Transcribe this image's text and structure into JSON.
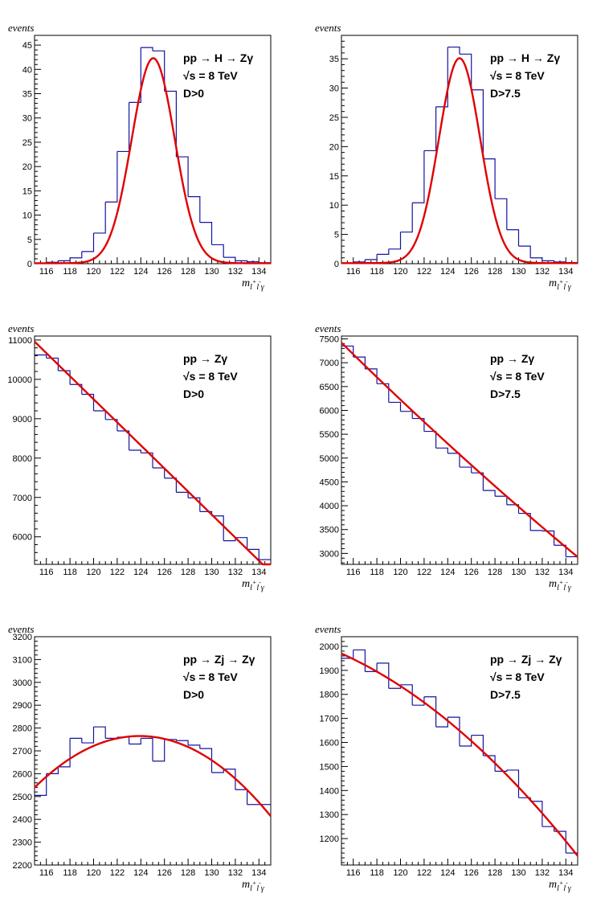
{
  "chart_data": [
    {
      "type": "histogram+fit",
      "ylabel": "events",
      "xlabel": {
        "base": "m",
        "sub": "l",
        "sup1": "+",
        "mid": "l",
        "sup2": "-",
        "end": "γ"
      },
      "annotations": [
        "pp → H → Zγ",
        "√s = 8 TeV",
        "D>0"
      ],
      "xlim": [
        115,
        135
      ],
      "ylim": [
        0,
        47
      ],
      "xticks": [
        116,
        118,
        120,
        122,
        124,
        126,
        128,
        130,
        132,
        134
      ],
      "yticks": [
        0,
        5,
        10,
        15,
        20,
        25,
        30,
        35,
        40,
        45
      ],
      "bin_edges": [
        115,
        116,
        117,
        118,
        119,
        120,
        121,
        122,
        123,
        124,
        125,
        126,
        127,
        128,
        129,
        130,
        131,
        132,
        133,
        134,
        135
      ],
      "histogram": [
        0.1,
        0.3,
        0.6,
        1.2,
        2.5,
        6.3,
        12.7,
        23.1,
        33.2,
        44.5,
        43.8,
        35.5,
        22.0,
        13.8,
        8.5,
        3.9,
        1.3,
        0.6,
        0.4,
        0.2
      ],
      "fit": {
        "kind": "gaussian",
        "amplitude": 42.2,
        "mean": 125.05,
        "sigma": 1.82,
        "baseline": 0.1
      },
      "hist_color": "#1414a0",
      "fit_color": "#e00000"
    },
    {
      "type": "histogram+fit",
      "ylabel": "events",
      "xlabel": {
        "base": "m",
        "sub": "l",
        "sup1": "+",
        "mid": "l",
        "sup2": "-",
        "end": "γ"
      },
      "annotations": [
        "pp → H → Zγ",
        "√s = 8 TeV",
        "D>7.5"
      ],
      "xlim": [
        115,
        135
      ],
      "ylim": [
        0,
        39
      ],
      "xticks": [
        116,
        118,
        120,
        122,
        124,
        126,
        128,
        130,
        132,
        134
      ],
      "yticks": [
        0,
        5,
        10,
        15,
        20,
        25,
        30,
        35
      ],
      "bin_edges": [
        115,
        116,
        117,
        118,
        119,
        120,
        121,
        122,
        123,
        124,
        125,
        126,
        127,
        128,
        129,
        130,
        131,
        132,
        133,
        134,
        135
      ],
      "histogram": [
        0.1,
        0.3,
        0.7,
        1.6,
        2.5,
        5.4,
        10.4,
        19.3,
        26.8,
        37.0,
        35.8,
        29.7,
        17.9,
        11.1,
        5.8,
        3.0,
        1.0,
        0.5,
        0.3,
        0.2
      ],
      "fit": {
        "kind": "gaussian",
        "amplitude": 35.0,
        "mean": 125.0,
        "sigma": 1.75,
        "baseline": 0.1
      },
      "hist_color": "#1414a0",
      "fit_color": "#e00000"
    },
    {
      "type": "histogram+fit",
      "ylabel": "events",
      "xlabel": {
        "base": "m",
        "sub": "l",
        "sup1": "+",
        "mid": "l",
        "sup2": "-",
        "end": "γ"
      },
      "annotations": [
        "pp → Zγ",
        "√s = 8 TeV",
        "D>0"
      ],
      "xlim": [
        115,
        135
      ],
      "ylim": [
        5300,
        11100
      ],
      "xticks": [
        116,
        118,
        120,
        122,
        124,
        126,
        128,
        130,
        132,
        134
      ],
      "yticks": [
        6000,
        7000,
        8000,
        9000,
        10000,
        11000
      ],
      "bin_edges": [
        115,
        116,
        117,
        118,
        119,
        120,
        121,
        122,
        123,
        124,
        125,
        126,
        127,
        128,
        129,
        130,
        131,
        132,
        133,
        134,
        135
      ],
      "histogram": [
        10620,
        10540,
        10220,
        9870,
        9620,
        9200,
        8980,
        8690,
        8200,
        8130,
        7750,
        7490,
        7130,
        6990,
        6640,
        6530,
        5900,
        5980,
        5680,
        5420
      ],
      "fit": {
        "kind": "polynomial",
        "coefficients": [
          10960,
          -293,
          0
        ]
      },
      "hist_color": "#1414a0",
      "fit_color": "#e00000"
    },
    {
      "type": "histogram+fit",
      "ylabel": "events",
      "xlabel": {
        "base": "m",
        "sub": "l",
        "sup1": "+",
        "mid": "l",
        "sup2": "-",
        "end": "γ"
      },
      "annotations": [
        "pp → Zγ",
        "√s = 8 TeV",
        "D>7.5"
      ],
      "xlim": [
        115,
        135
      ],
      "ylim": [
        2770,
        7560
      ],
      "xticks": [
        116,
        118,
        120,
        122,
        124,
        126,
        128,
        130,
        132,
        134
      ],
      "yticks": [
        3000,
        3500,
        4000,
        4500,
        5000,
        5500,
        6000,
        6500,
        7000,
        7500
      ],
      "bin_edges": [
        115,
        116,
        117,
        118,
        119,
        120,
        121,
        122,
        123,
        124,
        125,
        126,
        127,
        128,
        129,
        130,
        131,
        132,
        133,
        134,
        135
      ],
      "histogram": [
        7350,
        7120,
        6870,
        6560,
        6170,
        5980,
        5830,
        5560,
        5210,
        5100,
        4810,
        4690,
        4320,
        4200,
        4020,
        3840,
        3480,
        3470,
        3170,
        2930
      ],
      "fit": {
        "kind": "polynomial",
        "coefficients": [
          7420,
          -243.8,
          0.95
        ]
      },
      "hist_color": "#1414a0",
      "fit_color": "#e00000"
    },
    {
      "type": "histogram+fit",
      "ylabel": "events",
      "xlabel": {
        "base": "m",
        "sub": "l",
        "sup1": "+",
        "mid": "l",
        "sup2": "-",
        "end": "γ"
      },
      "annotations": [
        "pp → Zj → Zγ",
        "√s = 8 TeV",
        "D>0"
      ],
      "xlim": [
        115,
        135
      ],
      "ylim": [
        2200,
        3200
      ],
      "xticks": [
        116,
        118,
        120,
        122,
        124,
        126,
        128,
        130,
        132,
        134
      ],
      "yticks": [
        2200,
        2300,
        2400,
        2500,
        2600,
        2700,
        2800,
        2900,
        3000,
        3100,
        3200
      ],
      "bin_edges": [
        115,
        116,
        117,
        118,
        119,
        120,
        121,
        122,
        123,
        124,
        125,
        126,
        127,
        128,
        129,
        130,
        131,
        132,
        133,
        134,
        135
      ],
      "histogram": [
        2505,
        2600,
        2630,
        2755,
        2735,
        2805,
        2755,
        2760,
        2730,
        2755,
        2655,
        2750,
        2745,
        2725,
        2710,
        2605,
        2620,
        2530,
        2465,
        2465
      ],
      "fit": {
        "kind": "parabola",
        "peak_x": 123.9,
        "peak_y": 2765,
        "curvature": -2.85
      },
      "hist_color": "#1414a0",
      "fit_color": "#e00000"
    },
    {
      "type": "histogram+fit",
      "ylabel": "events",
      "xlabel": {
        "base": "m",
        "sub": "l",
        "sup1": "+",
        "mid": "l",
        "sup2": "-",
        "end": "γ"
      },
      "annotations": [
        "pp → Zj → Zγ",
        "√s = 8 TeV",
        "D>7.5"
      ],
      "xlim": [
        115,
        135
      ],
      "ylim": [
        1090,
        2040
      ],
      "xticks": [
        116,
        118,
        120,
        122,
        124,
        126,
        128,
        130,
        132,
        134
      ],
      "yticks": [
        1200,
        1300,
        1400,
        1500,
        1600,
        1700,
        1800,
        1900,
        2000
      ],
      "bin_edges": [
        115,
        116,
        117,
        118,
        119,
        120,
        121,
        122,
        123,
        124,
        125,
        126,
        127,
        128,
        129,
        130,
        131,
        132,
        133,
        134,
        135
      ],
      "histogram": [
        1950,
        1985,
        1895,
        1930,
        1825,
        1840,
        1755,
        1790,
        1665,
        1705,
        1585,
        1630,
        1545,
        1480,
        1485,
        1370,
        1355,
        1250,
        1230,
        1140
      ],
      "fit": {
        "kind": "polynomial",
        "coefficients": [
          1970,
          -22.1,
          -1.0
        ]
      },
      "hist_color": "#1414a0",
      "fit_color": "#e00000"
    }
  ]
}
